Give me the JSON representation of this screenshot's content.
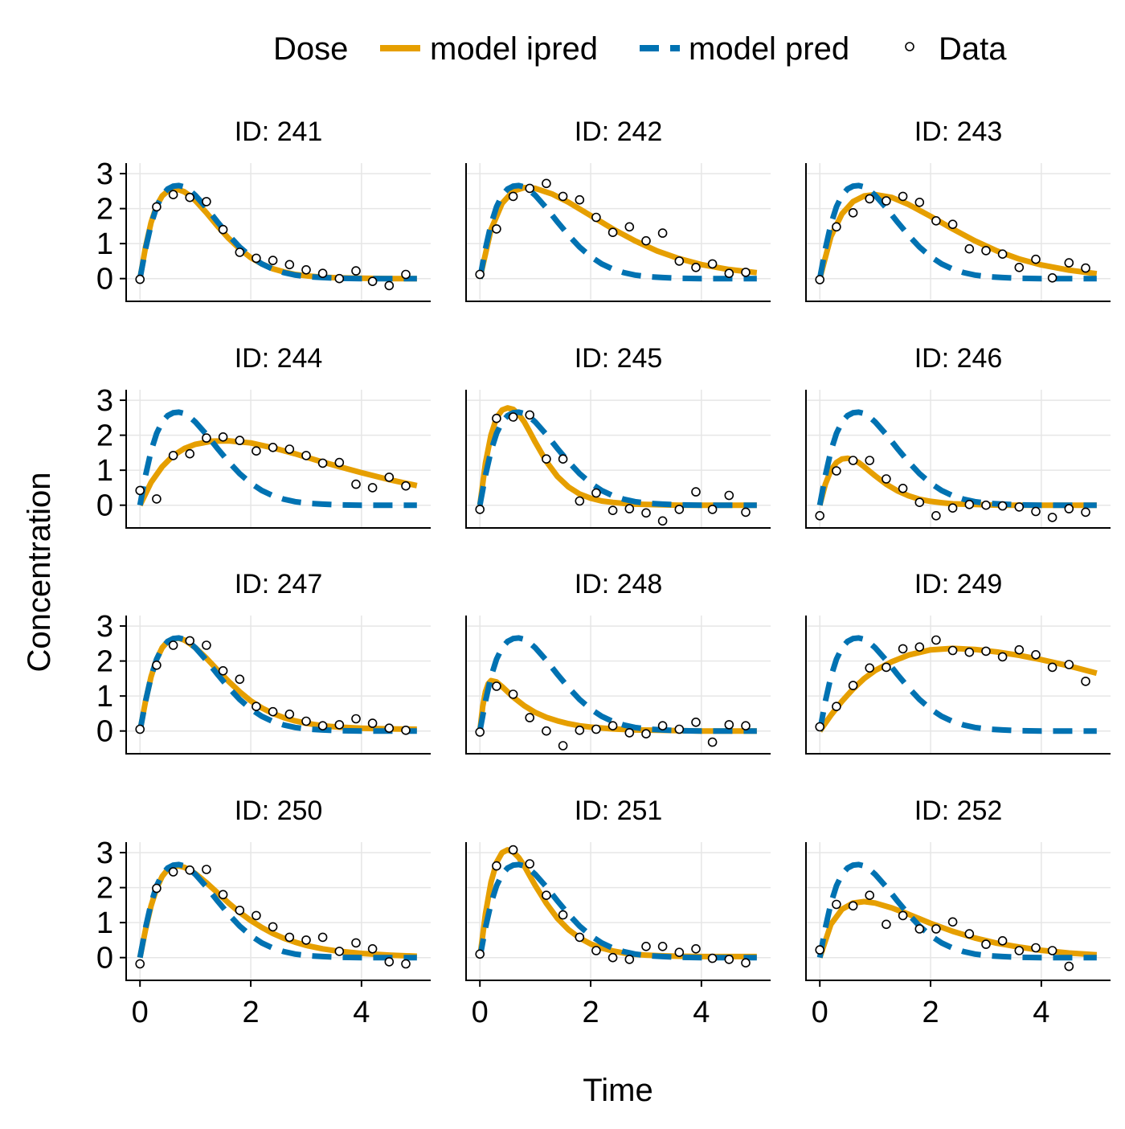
{
  "legend": {
    "title": "Dose",
    "items": [
      {
        "label": "model ipred",
        "style": "solid",
        "color": "#E69F00"
      },
      {
        "label": "model pred",
        "style": "dashed",
        "color": "#0072B2"
      },
      {
        "label": "Data",
        "style": "marker"
      }
    ]
  },
  "chart_data": {
    "type": "line",
    "layout": "facet-grid 4x3",
    "xlabel": "Time",
    "ylabel": "Concentration",
    "xlim": [
      -0.25,
      5.25
    ],
    "ylim": [
      -0.65,
      3.3
    ],
    "xticks": [
      0,
      2,
      4
    ],
    "yticks": [
      0,
      1,
      2,
      3
    ],
    "grid": true,
    "legend_position": "top",
    "colors": {
      "ipred": "#E69F00",
      "pred": "#0072B2",
      "data_fill": "#ffffff",
      "data_stroke": "#000000"
    },
    "time": [
      0,
      0.3,
      0.6,
      0.9,
      1.2,
      1.5,
      1.8,
      2.1,
      2.4,
      2.7,
      3.0,
      3.3,
      3.6,
      3.9,
      4.2,
      4.5,
      4.8
    ],
    "pred": {
      "x": [
        0,
        0.1,
        0.2,
        0.3,
        0.4,
        0.5,
        0.6,
        0.7,
        0.8,
        0.9,
        1.0,
        1.2,
        1.4,
        1.6,
        1.8,
        2.0,
        2.2,
        2.4,
        2.6,
        2.8,
        3.0,
        3.3,
        3.6,
        4.0,
        4.5,
        5.0
      ],
      "y": [
        0,
        0.85,
        1.55,
        2.05,
        2.38,
        2.56,
        2.64,
        2.66,
        2.62,
        2.52,
        2.38,
        2.02,
        1.62,
        1.24,
        0.9,
        0.63,
        0.42,
        0.27,
        0.17,
        0.1,
        0.06,
        0.03,
        0.01,
        0.0,
        0.0,
        0.0
      ]
    },
    "panels": [
      {
        "id": "ID: 241",
        "ipred": {
          "x": [
            0,
            0.1,
            0.2,
            0.3,
            0.4,
            0.5,
            0.6,
            0.7,
            0.8,
            0.9,
            1.0,
            1.2,
            1.4,
            1.6,
            1.8,
            2.0,
            2.2,
            2.4,
            2.6,
            2.8,
            3.0,
            3.3,
            3.6,
            4.0,
            4.5,
            5.0
          ],
          "y": [
            0,
            0.9,
            1.6,
            2.08,
            2.36,
            2.5,
            2.55,
            2.54,
            2.48,
            2.37,
            2.23,
            1.88,
            1.5,
            1.15,
            0.85,
            0.6,
            0.42,
            0.28,
            0.19,
            0.12,
            0.08,
            0.04,
            0.02,
            0.01,
            0.0,
            0.0
          ]
        },
        "obs": [
          -0.02,
          2.05,
          2.4,
          2.32,
          2.2,
          1.4,
          0.75,
          0.58,
          0.52,
          0.4,
          0.25,
          0.15,
          0.0,
          0.22,
          -0.08,
          -0.2,
          0.12
        ]
      },
      {
        "id": "ID: 242",
        "ipred": {
          "x": [
            0,
            0.2,
            0.4,
            0.6,
            0.8,
            1.0,
            1.3,
            1.6,
            2.0,
            2.4,
            2.8,
            3.2,
            3.6,
            4.0,
            4.5,
            5.0
          ],
          "y": [
            0,
            1.4,
            2.15,
            2.5,
            2.6,
            2.58,
            2.42,
            2.18,
            1.8,
            1.42,
            1.08,
            0.79,
            0.57,
            0.4,
            0.26,
            0.17
          ]
        },
        "obs": [
          0.12,
          1.42,
          2.35,
          2.58,
          2.72,
          2.35,
          2.25,
          1.75,
          1.32,
          1.48,
          1.08,
          1.3,
          0.5,
          0.32,
          0.42,
          0.15,
          0.18
        ]
      },
      {
        "id": "ID: 243",
        "ipred": {
          "x": [
            0,
            0.2,
            0.4,
            0.6,
            0.8,
            1.0,
            1.3,
            1.6,
            2.0,
            2.4,
            2.8,
            3.2,
            3.6,
            4.0,
            4.5,
            5.0
          ],
          "y": [
            0,
            1.2,
            1.85,
            2.2,
            2.36,
            2.4,
            2.32,
            2.12,
            1.78,
            1.42,
            1.08,
            0.79,
            0.56,
            0.39,
            0.24,
            0.14
          ]
        },
        "obs": [
          -0.03,
          1.48,
          1.88,
          2.28,
          2.22,
          2.35,
          2.18,
          1.65,
          1.55,
          0.85,
          0.8,
          0.7,
          0.32,
          0.55,
          0.02,
          0.45,
          0.3
        ]
      },
      {
        "id": "ID: 244",
        "ipred": {
          "x": [
            0,
            0.2,
            0.4,
            0.6,
            0.8,
            1.0,
            1.3,
            1.6,
            2.0,
            2.4,
            2.8,
            3.2,
            3.6,
            4.0,
            4.5,
            5.0
          ],
          "y": [
            0,
            0.65,
            1.1,
            1.42,
            1.62,
            1.74,
            1.83,
            1.84,
            1.78,
            1.64,
            1.47,
            1.28,
            1.1,
            0.93,
            0.73,
            0.56
          ]
        },
        "obs": [
          0.42,
          0.18,
          1.42,
          1.47,
          1.92,
          1.95,
          1.85,
          1.55,
          1.65,
          1.6,
          1.42,
          1.2,
          1.22,
          0.6,
          0.5,
          0.8,
          0.55
        ]
      },
      {
        "id": "ID: 245",
        "ipred": {
          "x": [
            0,
            0.1,
            0.2,
            0.3,
            0.4,
            0.5,
            0.6,
            0.7,
            0.8,
            0.9,
            1.0,
            1.2,
            1.4,
            1.6,
            1.8,
            2.0,
            2.2,
            2.4,
            2.6,
            2.8,
            3.0,
            3.3,
            3.6,
            4.0,
            4.5,
            5.0
          ],
          "y": [
            0,
            1.2,
            2.0,
            2.5,
            2.72,
            2.78,
            2.74,
            2.6,
            2.38,
            2.1,
            1.8,
            1.25,
            0.82,
            0.52,
            0.32,
            0.2,
            0.12,
            0.08,
            0.05,
            0.03,
            0.02,
            0.01,
            0.0,
            0.0,
            0.0,
            0.0
          ]
        },
        "obs": [
          -0.12,
          2.48,
          2.52,
          2.58,
          1.32,
          1.32,
          0.12,
          0.35,
          -0.15,
          -0.1,
          -0.22,
          -0.45,
          -0.12,
          0.38,
          -0.12,
          0.28,
          -0.2
        ]
      },
      {
        "id": "ID: 246",
        "ipred": {
          "x": [
            0,
            0.1,
            0.2,
            0.3,
            0.4,
            0.5,
            0.6,
            0.7,
            0.8,
            0.9,
            1.0,
            1.2,
            1.4,
            1.6,
            1.8,
            2.0,
            2.2,
            2.4,
            2.6,
            2.8,
            3.0,
            3.3,
            3.6,
            4.0,
            4.5,
            5.0
          ],
          "y": [
            0,
            0.6,
            1.0,
            1.22,
            1.32,
            1.34,
            1.3,
            1.22,
            1.1,
            0.97,
            0.84,
            0.6,
            0.41,
            0.27,
            0.17,
            0.11,
            0.07,
            0.04,
            0.03,
            0.02,
            0.01,
            0.0,
            0.0,
            0.0,
            0.0,
            0.0
          ]
        },
        "obs": [
          -0.3,
          0.98,
          1.28,
          1.28,
          0.75,
          0.48,
          0.08,
          -0.3,
          -0.08,
          0.02,
          0.0,
          -0.02,
          -0.05,
          -0.18,
          -0.35,
          -0.1,
          -0.2
        ]
      },
      {
        "id": "ID: 247",
        "ipred": {
          "x": [
            0,
            0.1,
            0.2,
            0.3,
            0.4,
            0.5,
            0.6,
            0.7,
            0.8,
            0.9,
            1.0,
            1.2,
            1.4,
            1.6,
            1.8,
            2.0,
            2.2,
            2.4,
            2.6,
            2.8,
            3.0,
            3.3,
            3.6,
            4.0,
            4.5,
            5.0
          ],
          "y": [
            0,
            0.85,
            1.55,
            2.05,
            2.38,
            2.56,
            2.64,
            2.65,
            2.6,
            2.5,
            2.38,
            2.08,
            1.74,
            1.42,
            1.12,
            0.86,
            0.66,
            0.5,
            0.38,
            0.29,
            0.22,
            0.15,
            0.11,
            0.08,
            0.06,
            0.05
          ]
        },
        "obs": [
          0.05,
          1.88,
          2.45,
          2.58,
          2.45,
          1.72,
          1.48,
          0.7,
          0.55,
          0.48,
          0.28,
          0.15,
          0.18,
          0.35,
          0.22,
          0.08,
          0.02
        ]
      },
      {
        "id": "ID: 248",
        "ipred": {
          "x": [
            0,
            0.05,
            0.1,
            0.15,
            0.2,
            0.3,
            0.4,
            0.5,
            0.6,
            0.8,
            1.0,
            1.2,
            1.4,
            1.6,
            1.8,
            2.0,
            2.4,
            2.8,
            3.2,
            3.6,
            4.0,
            4.5,
            5.0
          ],
          "y": [
            0,
            0.7,
            1.12,
            1.35,
            1.44,
            1.4,
            1.27,
            1.12,
            0.97,
            0.72,
            0.53,
            0.39,
            0.29,
            0.21,
            0.15,
            0.11,
            0.06,
            0.03,
            0.02,
            0.01,
            0.0,
            0.0,
            0.0
          ]
        },
        "obs": [
          -0.03,
          1.28,
          1.05,
          0.38,
          0.0,
          -0.42,
          0.02,
          0.05,
          0.15,
          -0.05,
          -0.08,
          0.15,
          0.05,
          0.25,
          -0.32,
          0.18,
          0.15
        ]
      },
      {
        "id": "ID: 249",
        "ipred": {
          "x": [
            0,
            0.2,
            0.4,
            0.6,
            0.8,
            1.0,
            1.3,
            1.6,
            2.0,
            2.4,
            2.8,
            3.2,
            3.6,
            4.0,
            4.5,
            5.0
          ],
          "y": [
            0,
            0.45,
            0.85,
            1.2,
            1.5,
            1.73,
            1.98,
            2.17,
            2.32,
            2.36,
            2.33,
            2.26,
            2.16,
            2.04,
            1.86,
            1.65
          ]
        },
        "obs": [
          0.12,
          0.7,
          1.3,
          1.8,
          1.82,
          2.35,
          2.4,
          2.6,
          2.3,
          2.25,
          2.28,
          2.12,
          2.32,
          2.18,
          1.82,
          1.9,
          1.42
        ]
      },
      {
        "id": "ID: 250",
        "ipred": {
          "x": [
            0,
            0.1,
            0.2,
            0.3,
            0.4,
            0.5,
            0.6,
            0.7,
            0.8,
            0.9,
            1.0,
            1.2,
            1.4,
            1.6,
            1.8,
            2.0,
            2.2,
            2.4,
            2.6,
            2.8,
            3.0,
            3.3,
            3.6,
            4.0,
            4.5,
            5.0
          ],
          "y": [
            0,
            0.8,
            1.48,
            1.98,
            2.32,
            2.52,
            2.61,
            2.62,
            2.58,
            2.5,
            2.4,
            2.14,
            1.85,
            1.56,
            1.29,
            1.06,
            0.86,
            0.69,
            0.55,
            0.44,
            0.35,
            0.25,
            0.18,
            0.12,
            0.07,
            0.04
          ]
        },
        "obs": [
          -0.18,
          1.98,
          2.45,
          2.5,
          2.52,
          1.8,
          1.35,
          1.2,
          0.88,
          0.58,
          0.5,
          0.58,
          0.18,
          0.42,
          0.25,
          -0.12,
          -0.18
        ]
      },
      {
        "id": "ID: 251",
        "ipred": {
          "x": [
            0,
            0.1,
            0.2,
            0.3,
            0.4,
            0.5,
            0.6,
            0.7,
            0.8,
            0.9,
            1.0,
            1.2,
            1.4,
            1.6,
            1.8,
            2.0,
            2.2,
            2.4,
            2.6,
            2.8,
            3.0,
            3.3,
            3.6,
            4.0,
            4.5,
            5.0
          ],
          "y": [
            0,
            1.25,
            2.15,
            2.72,
            3.0,
            3.08,
            3.02,
            2.86,
            2.62,
            2.34,
            2.06,
            1.55,
            1.12,
            0.8,
            0.56,
            0.39,
            0.27,
            0.19,
            0.13,
            0.09,
            0.07,
            0.05,
            0.04,
            0.03,
            0.03,
            0.03
          ]
        },
        "obs": [
          0.1,
          2.62,
          3.08,
          2.68,
          1.78,
          1.22,
          0.58,
          0.2,
          0.0,
          -0.05,
          0.32,
          0.32,
          0.15,
          0.25,
          -0.02,
          -0.05,
          -0.15
        ]
      },
      {
        "id": "ID: 252",
        "ipred": {
          "x": [
            0,
            0.2,
            0.4,
            0.6,
            0.8,
            1.0,
            1.3,
            1.6,
            2.0,
            2.4,
            2.8,
            3.2,
            3.6,
            4.0,
            4.5,
            5.0
          ],
          "y": [
            0,
            0.95,
            1.38,
            1.56,
            1.6,
            1.56,
            1.42,
            1.24,
            0.98,
            0.75,
            0.56,
            0.41,
            0.3,
            0.21,
            0.13,
            0.08
          ]
        },
        "obs": [
          0.22,
          1.52,
          1.48,
          1.78,
          0.95,
          1.2,
          0.82,
          0.82,
          1.02,
          0.68,
          0.38,
          0.48,
          0.2,
          0.28,
          0.2,
          -0.25
        ]
      }
    ]
  }
}
